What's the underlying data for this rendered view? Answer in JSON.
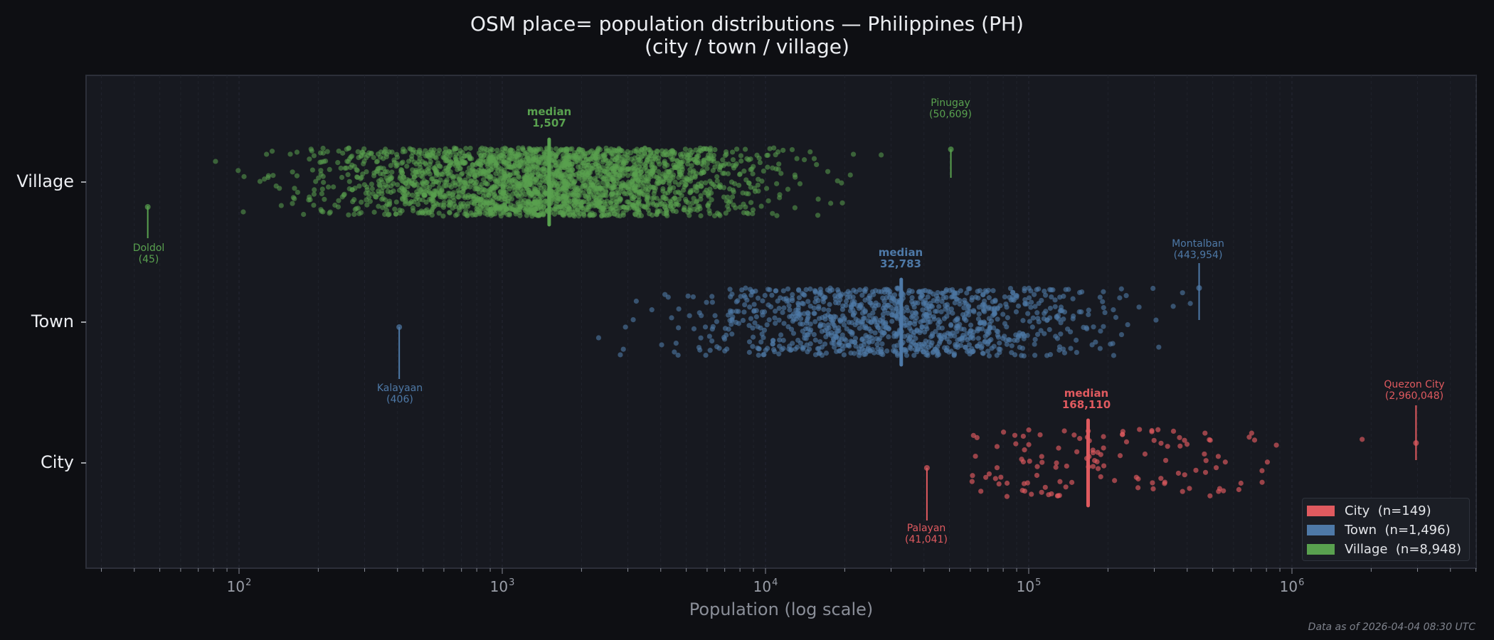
{
  "title": {
    "line1": "OSM place= population distributions — Philippines (PH)",
    "line2": "(city / town / village)"
  },
  "footer": "Data as of 2026-04-04 08:30 UTC",
  "colors": {
    "background": "#0e0f13",
    "plot_background": "#171920",
    "city": "#e05a5f",
    "town": "#4e79a7",
    "village": "#59a14f"
  },
  "chart_data": {
    "type": "scatter",
    "subtype": "strip/jitter plot, log-x",
    "title": "OSM place= population distributions — Philippines (PH) (city / town / village)",
    "xlabel": "Population (log scale)",
    "ylabel": "",
    "xscale": "log",
    "xlim": [
      32,
      5000000
    ],
    "x_ticks": [
      {
        "base": "10",
        "exp": "2",
        "value": 100
      },
      {
        "base": "10",
        "exp": "3",
        "value": 1000
      },
      {
        "base": "10",
        "exp": "4",
        "value": 10000
      },
      {
        "base": "10",
        "exp": "5",
        "value": 100000
      },
      {
        "base": "10",
        "exp": "6",
        "value": 1000000
      }
    ],
    "categories": [
      "Village",
      "Town",
      "City"
    ],
    "grid": "vertical minor dashed",
    "legend_position": "lower right",
    "legend": [
      {
        "key": "city",
        "label": "City  (n=149)"
      },
      {
        "key": "town",
        "label": "Town  (n=1,496)"
      },
      {
        "key": "village",
        "label": "Village  (n=8,948)"
      }
    ],
    "series": [
      {
        "name": "Village",
        "key": "village",
        "n": 8948,
        "median": 1507,
        "median_label": "median",
        "median_text": "1,507",
        "approx_range": [
          45,
          50609
        ],
        "approx_core_range": [
          300,
          5000
        ],
        "min": {
          "name": "Doldol",
          "value": 45,
          "text": "(45)"
        },
        "max": {
          "name": "Pinugay",
          "value": 50609,
          "text": "(50,609)"
        }
      },
      {
        "name": "Town",
        "key": "town",
        "n": 1496,
        "median": 32783,
        "median_label": "median",
        "median_text": "32,783",
        "approx_range": [
          406,
          443954
        ],
        "approx_core_range": [
          8000,
          150000
        ],
        "min": {
          "name": "Kalayaan",
          "value": 406,
          "text": "(406)"
        },
        "max": {
          "name": "Montalban",
          "value": 443954,
          "text": "(443,954)"
        }
      },
      {
        "name": "City",
        "key": "city",
        "n": 149,
        "median": 168110,
        "median_label": "median",
        "median_text": "168,110",
        "approx_range": [
          41041,
          2960048
        ],
        "approx_core_range": [
          55000,
          900000
        ],
        "min": {
          "name": "Palayan",
          "value": 41041,
          "text": "(41,041)"
        },
        "max": {
          "name": "Quezon City",
          "value": 2960048,
          "text": "(2,960,048)"
        }
      }
    ]
  }
}
